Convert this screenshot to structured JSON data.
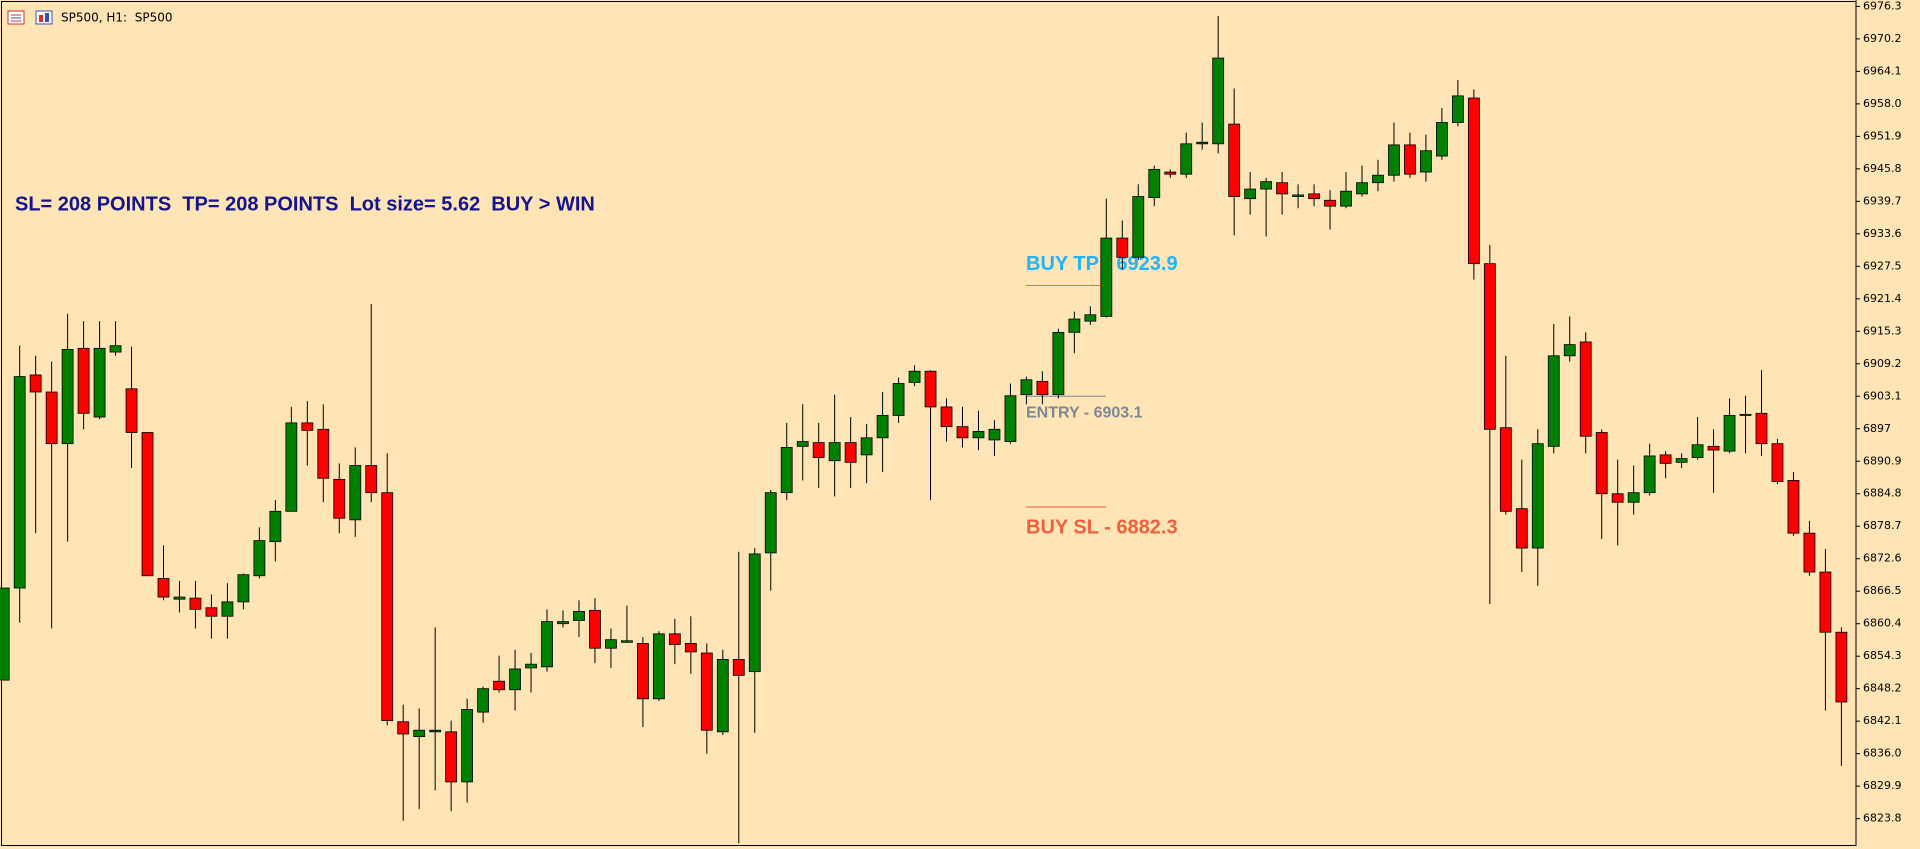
{
  "chart_data": {
    "type": "candlestick",
    "title": "SP500, H1:  SP500",
    "annotation": "SL= 208 POINTS  TP= 208 POINTS  Lot size= 5.62  BUY > WIN",
    "background": "#ffe4b5",
    "up_color": "#008000",
    "down_color": "#ff0000",
    "ylim": [
      6818.1,
      6977.5
    ],
    "yticks": [
      6976.3,
      6970.2,
      6964.1,
      {
        "value": 6958,
        "label": "6958.0"
      },
      6951.9,
      6945.8,
      6939.7,
      6933.6,
      6927.5,
      6921.4,
      6915.3,
      6909.2,
      6903.1,
      6897,
      6890.9,
      6884.8,
      6878.7,
      6872.6,
      6866.5,
      6860.4,
      6854.3,
      6848.2,
      6842.1,
      {
        "value": 6836,
        "label": "6836.0"
      },
      6829.9,
      6823.8
    ],
    "levels": [
      {
        "label": "BUY TP - 6923.9",
        "value": 6923.9,
        "color": "#1eb4ff"
      },
      {
        "label": "ENTRY - 6903.1",
        "value": 6903.1,
        "color": "#7a8899"
      },
      {
        "label": "BUY SL - 6882.3",
        "value": 6882.3,
        "color": "#f0603f"
      }
    ],
    "open": [
      6849.8,
      6867.1,
      6907.1,
      6903.9,
      6894.2,
      6912.1,
      6899.2,
      6911.4,
      6904.5,
      6896.3,
      6868.9,
      6865.0,
      6865.2,
      6863.4,
      6861.8,
      6864.5,
      6869.4,
      6875.8,
      6881.5,
      6898.1,
      6896.9,
      6887.5,
      6879.9,
      6890.1,
      6885.0,
      6842.0,
      6839.2,
      6840.1,
      6840.1,
      6830.7,
      6843.8,
      6849.6,
      6848.0,
      6852.1,
      6852.3,
      6860.4,
      6861.0,
      6862.9,
      6855.8,
      6856.9,
      6856.7,
      6846.3,
      6858.5,
      6856.7,
      6854.9,
      6840.1,
      6853.7,
      6851.4,
      6873.7,
      6885.0,
      6893.7,
      6894.4,
      6891.0,
      6894.4,
      6892.1,
      6895.3,
      6899.5,
      6905.7,
      6907.8,
      6901.1,
      6897.4,
      6895.3,
      6894.9,
      6894.6,
      6903.4,
      6905.9,
      6903.4,
      6915.1,
      6917.2,
      6918.1,
      6932.8,
      6929.2,
      6940.4,
      6945.2,
      6944.8,
      6950.5,
      6950.5,
      6954.2,
      6940.2,
      6942.0,
      6943.2,
      6940.6,
      6941.1,
      6939.9,
      6938.8,
      6941.1,
      6943.2,
      6944.6,
      6950.3,
      6945.2,
      6948.2,
      6954.5,
      6959.1,
      6928.0,
      6897.2,
      6882.0,
      6874.6,
      6893.7,
      6910.7,
      6913.3,
      6896.3,
      6884.8,
      6883.2,
      6885.0,
      6892.1,
      6890.7,
      6891.6,
      6893.7,
      6892.8,
      6899.5,
      6899.9,
      6894.2,
      6887.3,
      6877.4,
      6870.1,
      6858.8
    ],
    "high": [
      6867.1,
      6912.6,
      6910.7,
      6909.6,
      6918.6,
      6917.2,
      6917.2,
      6917.2,
      6912.4,
      6896.3,
      6875.1,
      6868.4,
      6868.4,
      6865.9,
      6868.0,
      6869.8,
      6878.5,
      6883.6,
      6901.1,
      6902.2,
      6901.6,
      6890.5,
      6893.5,
      6920.4,
      6892.4,
      6845.2,
      6844.5,
      6859.7,
      6842.2,
      6846.3,
      6848.6,
      6854.4,
      6855.5,
      6854.9,
      6863.1,
      6862.9,
      6864.8,
      6865.2,
      6859.5,
      6863.8,
      6857.9,
      6859.0,
      6861.3,
      6861.8,
      6856.7,
      6855.5,
      6873.9,
      6874.6,
      6885.5,
      6898.1,
      6901.6,
      6898.1,
      6903.4,
      6899.2,
      6897.9,
      6903.9,
      6906.6,
      6908.9,
      6908.0,
      6902.7,
      6901.1,
      6900.4,
      6898.6,
      6905.5,
      6906.8,
      6907.8,
      6915.8,
      6919.0,
      6920.0,
      6940.2,
      6936.1,
      6942.9,
      6946.4,
      6945.7,
      6952.6,
      6954.5,
      6974.5,
      6960.9,
      6945.2,
      6944.1,
      6945.2,
      6942.9,
      6942.9,
      6941.8,
      6945.2,
      6946.4,
      6947.5,
      6954.5,
      6952.6,
      6952.2,
      6957.2,
      6962.5,
      6960.7,
      6931.5,
      6910.7,
      6891.2,
      6896.9,
      6916.7,
      6918.1,
      6915.1,
      6896.9,
      6891.2,
      6890.1,
      6894.2,
      6892.8,
      6892.4,
      6899.2,
      6896.9,
      6902.7,
      6903.2,
      6908.0,
      6895.1,
      6888.9,
      6879.7,
      6874.4,
      6859.7
    ],
    "low": [
      6849.8,
      6860.6,
      6877.4,
      6859.5,
      6875.8,
      6896.9,
      6898.8,
      6910.7,
      6889.6,
      6869.4,
      6864.8,
      6862.5,
      6859.5,
      6857.6,
      6857.6,
      6863.1,
      6868.9,
      6872.1,
      6881.5,
      6890.1,
      6883.2,
      6877.4,
      6876.7,
      6883.2,
      6841.3,
      6823.4,
      6825.6,
      6829.1,
      6825.2,
      6826.8,
      6841.8,
      6847.5,
      6844.1,
      6847.5,
      6851.4,
      6859.7,
      6857.9,
      6853.0,
      6852.1,
      6856.9,
      6841.0,
      6845.9,
      6852.8,
      6851.0,
      6836.0,
      6839.5,
      6819.2,
      6839.9,
      6866.6,
      6883.6,
      6887.3,
      6885.9,
      6884.3,
      6885.9,
      6886.8,
      6888.9,
      6898.1,
      6905.0,
      6883.6,
      6894.6,
      6893.5,
      6893.0,
      6891.9,
      6894.2,
      6901.6,
      6901.6,
      6902.7,
      6911.2,
      6916.5,
      6917.9,
      6926.9,
      6928.7,
      6938.8,
      6944.1,
      6944.1,
      6949.4,
      6948.7,
      6933.3,
      6937.2,
      6933.1,
      6937.2,
      6938.4,
      6938.8,
      6934.4,
      6938.4,
      6940.6,
      6941.6,
      6943.4,
      6944.1,
      6943.4,
      6947.5,
      6953.8,
      6925.0,
      6864.1,
      6880.9,
      6870.1,
      6867.5,
      6892.4,
      6909.6,
      6892.4,
      6876.3,
      6875.1,
      6880.9,
      6884.5,
      6887.7,
      6889.6,
      6891.2,
      6885.0,
      6892.4,
      6892.4,
      6891.9,
      6886.6,
      6876.9,
      6869.4,
      6844.1,
      6833.7
    ],
    "close": [
      6867.1,
      6906.8,
      6903.9,
      6894.2,
      6911.9,
      6899.9,
      6912.1,
      6912.6,
      6896.3,
      6869.4,
      6865.4,
      6865.4,
      6863.1,
      6861.8,
      6864.5,
      6869.6,
      6876.0,
      6881.5,
      6898.1,
      6896.7,
      6887.7,
      6880.2,
      6890.1,
      6885.0,
      6842.2,
      6839.7,
      6840.4,
      6840.4,
      6830.7,
      6844.3,
      6848.2,
      6848.0,
      6851.9,
      6852.8,
      6860.8,
      6860.8,
      6862.7,
      6855.8,
      6857.4,
      6857.2,
      6846.3,
      6858.5,
      6856.5,
      6855.1,
      6840.4,
      6853.7,
      6850.7,
      6873.5,
      6885.0,
      6893.5,
      6894.6,
      6891.6,
      6894.4,
      6890.7,
      6895.3,
      6899.5,
      6905.5,
      6907.8,
      6901.1,
      6897.4,
      6895.3,
      6896.5,
      6896.9,
      6903.2,
      6906.2,
      6903.4,
      6915.1,
      6917.6,
      6918.4,
      6932.8,
      6929.2,
      6940.6,
      6945.7,
      6944.8,
      6950.5,
      6950.8,
      6966.6,
      6940.6,
      6942.0,
      6943.4,
      6941.1,
      6940.9,
      6940.2,
      6938.8,
      6941.6,
      6943.2,
      6944.6,
      6950.3,
      6944.8,
      6949.2,
      6954.5,
      6959.5,
      6928.0,
      6896.9,
      6881.5,
      6874.6,
      6894.2,
      6910.7,
      6912.8,
      6895.6,
      6884.8,
      6883.2,
      6885.0,
      6891.9,
      6890.5,
      6891.4,
      6894.0,
      6893.0,
      6899.5,
      6899.7,
      6894.2,
      6887.1,
      6877.4,
      6870.1,
      6858.8,
      6845.7
    ]
  }
}
